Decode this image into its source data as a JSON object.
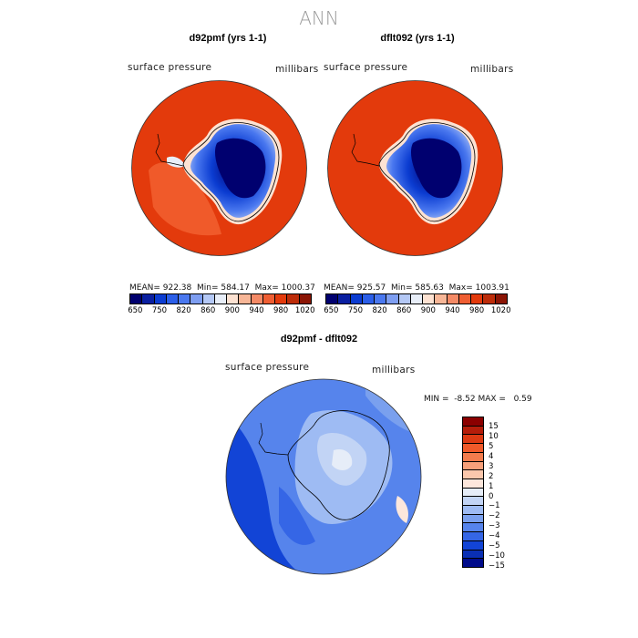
{
  "page": {
    "title": "ANN"
  },
  "panels": [
    {
      "title": "d92pmf (yrs 1-1)",
      "var_label": "surface pressure",
      "units_label": "millibars",
      "mean_label": "MEAN=",
      "mean": "922.38",
      "min_label": "Min=",
      "min": "584.17",
      "max_label": "Max=",
      "max": "1000.37"
    },
    {
      "title": "dflt092 (yrs 1-1)",
      "var_label": "surface pressure",
      "units_label": "millibars",
      "mean_label": "MEAN=",
      "mean": "925.57",
      "min_label": "Min=",
      "min": "585.63",
      "max_label": "Max=",
      "max": "1003.91"
    }
  ],
  "colorbar_top": {
    "colors": [
      "#00006f",
      "#0a1fa0",
      "#0b3cd1",
      "#2b5ee8",
      "#4a78ef",
      "#7e9ef1",
      "#b4c8f5",
      "#e8eef8",
      "#fde2d2",
      "#f7b697",
      "#f48a66",
      "#ef5e33",
      "#e33a0c",
      "#bd2d0a",
      "#8b1505"
    ],
    "ticks": [
      "650",
      "750",
      "820",
      "860",
      "900",
      "940",
      "980",
      "1020"
    ]
  },
  "diff_panel": {
    "title": "d92pmf - dflt092",
    "var_label": "surface pressure",
    "units_label": "millibars",
    "min_label": "MIN =",
    "min": "-8.52",
    "max_label": "MAX =",
    "max": "0.59"
  },
  "colorbar_diff": {
    "colors": [
      "#8b0000",
      "#b51d0a",
      "#dd3a13",
      "#f05a2a",
      "#f37c4d",
      "#f7a07a",
      "#fbc7ac",
      "#fde7dc",
      "#e6edf8",
      "#c2d4f5",
      "#9ebbf3",
      "#7aa0ee",
      "#5684ec",
      "#3566e6",
      "#1244d6",
      "#0a2fb4",
      "#000b8a"
    ],
    "ticks": [
      "15",
      "10",
      "5",
      "4",
      "3",
      "2",
      "1",
      "0",
      "−1",
      "−2",
      "−3",
      "−4",
      "−5",
      "−10",
      "−15"
    ]
  }
}
